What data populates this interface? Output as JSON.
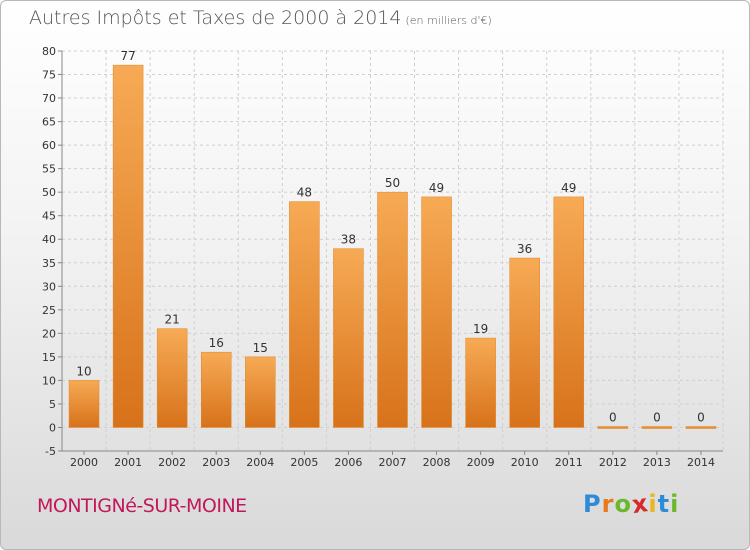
{
  "title": "Autres Impôts et Taxes de 2000 à 2014",
  "subtitle": "(en milliers d'€)",
  "commune": "MONTIGNé-SUR-MOINE",
  "logo": {
    "text": "Proxiti",
    "colors": [
      "#2e8bd8",
      "#e8791e",
      "#6bb82e",
      "#d62a2a",
      "#e8b81e",
      "#2e8bd8",
      "#6bb82e"
    ]
  },
  "colors": {
    "bar": "#ee8e2e",
    "bar_light": "#f7aa55",
    "bar_dark": "#d7721a",
    "grid": "#cfcfcf"
  },
  "chart_data": {
    "type": "bar",
    "categories": [
      "2000",
      "2001",
      "2002",
      "2003",
      "2004",
      "2005",
      "2006",
      "2007",
      "2008",
      "2009",
      "2010",
      "2011",
      "2012",
      "2013",
      "2014"
    ],
    "values": [
      10,
      77,
      21,
      16,
      15,
      48,
      38,
      50,
      49,
      19,
      36,
      49,
      0,
      0,
      0
    ],
    "ylim": [
      -5,
      80
    ],
    "yticks": [
      -5,
      0,
      5,
      10,
      15,
      20,
      25,
      30,
      35,
      40,
      45,
      50,
      55,
      60,
      65,
      70,
      75,
      80
    ],
    "grid": true,
    "data_labels": true,
    "title": "Autres Impôts et Taxes de 2000 à 2014",
    "subtitle": "(en milliers d'€)",
    "xlabel": "",
    "ylabel": ""
  }
}
